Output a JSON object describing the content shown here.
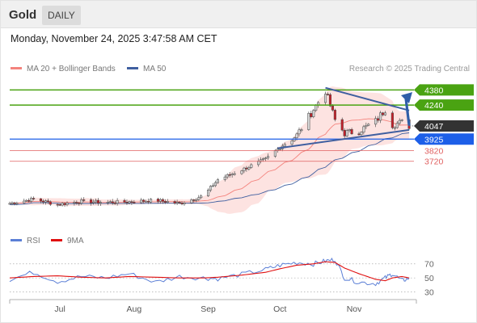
{
  "header": {
    "title": "Gold",
    "period_tab": "DAILY"
  },
  "timestamp": "Monday, November 24, 2025 3:47:58 AM CET",
  "legend": {
    "main": [
      {
        "label": "MA 20 + Bollinger Bands",
        "color": "#f4837d"
      },
      {
        "label": "MA 50",
        "color": "#3f5fa0"
      }
    ],
    "credit": "Research © 2025 Trading Central",
    "indicator": [
      {
        "label": "RSI",
        "color": "#5b7fd6"
      },
      {
        "label": "9MA",
        "color": "#e01010"
      }
    ]
  },
  "colors": {
    "up_candle": "#d9d9d9",
    "down_candle": "#c8202a",
    "resistance": "#4aa312",
    "pivot": "#1d5fe8",
    "support": "#e06060",
    "last_price": "#333333",
    "trendline": "#3f5fa0",
    "bollinger_fill": "#fde3e1"
  },
  "chart_data": [
    {
      "type": "line",
      "title": "Gold DAILY",
      "x_tick_labels": [
        "Jul",
        "Aug",
        "Sep",
        "Oct",
        "Nov"
      ],
      "x": [
        "2025-06-10",
        "2025-06-20",
        "2025-06-30",
        "2025-07-10",
        "2025-07-20",
        "2025-07-30",
        "2025-08-10",
        "2025-08-20",
        "2025-08-30",
        "2025-09-05",
        "2025-09-15",
        "2025-09-25",
        "2025-10-01",
        "2025-10-08",
        "2025-10-15",
        "2025-10-20",
        "2025-10-24",
        "2025-10-28",
        "2025-11-03",
        "2025-11-10",
        "2025-11-14",
        "2025-11-17",
        "2025-11-21",
        "2025-11-24"
      ],
      "series": [
        {
          "values": [
            3330,
            3370,
            3320,
            3350,
            3340,
            3345,
            3360,
            3330,
            3400,
            3550,
            3640,
            3740,
            3850,
            3960,
            4200,
            4370,
            4100,
            3980,
            4000,
            4090,
            4200,
            4060,
            4080,
            4047
          ]
        }
      ],
      "levels": [
        {
          "label": "4380",
          "value": 4380,
          "kind": "resistance"
        },
        {
          "label": "4240",
          "value": 4240,
          "kind": "resistance"
        },
        {
          "label": "4047",
          "value": 4047,
          "kind": "last"
        },
        {
          "label": "3925",
          "value": 3925,
          "kind": "pivot"
        },
        {
          "label": "3820",
          "value": 3820,
          "kind": "support"
        },
        {
          "label": "3720",
          "value": 3720,
          "kind": "support"
        }
      ]
    },
    {
      "type": "line",
      "y_tick_labels": [
        "70",
        "50",
        "30"
      ],
      "ylim": [
        25,
        80
      ],
      "series": [
        {
          "name": "RSI",
          "values": [
            48,
            58,
            45,
            52,
            50,
            56,
            44,
            52,
            50,
            49,
            55,
            62,
            68,
            72,
            70,
            74,
            76,
            50,
            44,
            42,
            50,
            56,
            46,
            50
          ]
        },
        {
          "name": "9MA",
          "values": [
            50,
            52,
            53,
            51,
            50,
            52,
            51,
            50,
            50,
            51,
            54,
            58,
            63,
            68,
            70,
            73,
            72,
            64,
            56,
            48,
            46,
            50,
            52,
            50
          ]
        }
      ]
    }
  ]
}
